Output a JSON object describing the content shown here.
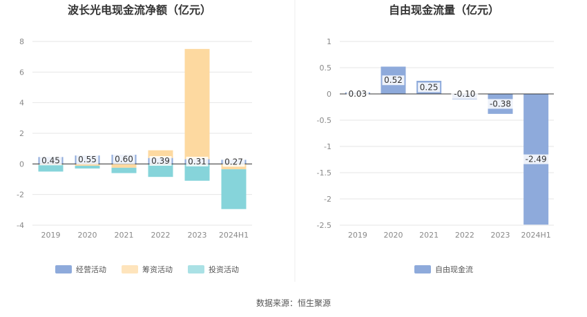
{
  "source_text": "数据来源：恒生聚源",
  "chart_data": [
    {
      "type": "bar",
      "stacked": true,
      "title": "波长光电现金流净额（亿元）",
      "categories": [
        "2019",
        "2020",
        "2021",
        "2022",
        "2023",
        "2024H1"
      ],
      "ylim": [
        -4,
        8
      ],
      "yticks": [
        -4,
        -2,
        0,
        2,
        4,
        6,
        8
      ],
      "grid": true,
      "legend_position": "bottom",
      "series": [
        {
          "name": "经营活动",
          "color": "#8eaadb",
          "values": [
            0.45,
            0.55,
            0.6,
            0.39,
            0.31,
            0.27
          ]
        },
        {
          "name": "筹资活动",
          "color": "#fdd9a0",
          "values": [
            -0.05,
            -0.12,
            -0.25,
            0.5,
            7.2,
            -0.35
          ]
        },
        {
          "name": "投资活动",
          "color": "#86d4da",
          "values": [
            -0.45,
            -0.18,
            -0.35,
            -0.85,
            -1.1,
            -2.6
          ]
        }
      ],
      "data_labels": [
        "0.45",
        "0.55",
        "0.60",
        "0.39",
        "0.31",
        "0.27"
      ]
    },
    {
      "type": "bar",
      "title": "自由现金流量（亿元）",
      "categories": [
        "2019",
        "2020",
        "2021",
        "2022",
        "2023",
        "2024H1"
      ],
      "ylim": [
        -2.5,
        1
      ],
      "yticks": [
        -2.5,
        -2,
        -1.5,
        -1,
        -0.5,
        0,
        0.5,
        1
      ],
      "grid": true,
      "legend_position": "bottom",
      "series": [
        {
          "name": "自由现金流",
          "color": "#8eaadb",
          "values": [
            0.03,
            0.52,
            0.25,
            -0.1,
            -0.38,
            -2.49
          ]
        }
      ],
      "data_labels": [
        "0.03",
        "0.52",
        "0.25",
        "-0.10",
        "-0.38",
        "-2.49"
      ]
    }
  ]
}
